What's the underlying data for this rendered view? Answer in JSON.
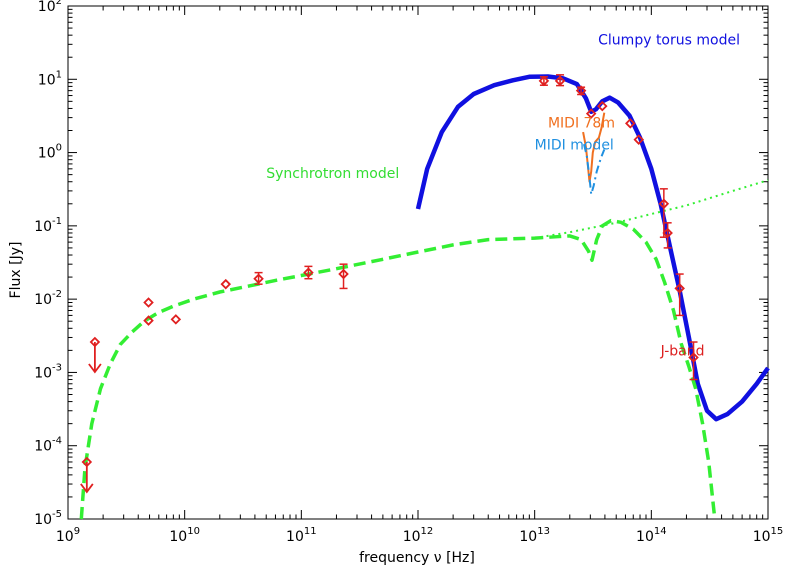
{
  "chart_data": {
    "type": "scatter",
    "title": "",
    "xlabel": "frequency ν [Hz]",
    "ylabel": "Flux [Jy]",
    "xscale": "log",
    "yscale": "log",
    "xlim": [
      1000000000.0,
      1000000000000000.0
    ],
    "ylim": [
      1e-05,
      100
    ],
    "grid": false,
    "x_ticks": [
      {
        "base": "10",
        "exp": "9",
        "value": 1000000000.0
      },
      {
        "base": "10",
        "exp": "10",
        "value": 10000000000.0
      },
      {
        "base": "10",
        "exp": "11",
        "value": 100000000000.0
      },
      {
        "base": "10",
        "exp": "12",
        "value": 1000000000000.0
      },
      {
        "base": "10",
        "exp": "13",
        "value": 10000000000000.0
      },
      {
        "base": "10",
        "exp": "14",
        "value": 100000000000000.0
      },
      {
        "base": "10",
        "exp": "15",
        "value": 1000000000000000.0
      }
    ],
    "y_ticks": [
      {
        "base": "10",
        "exp": "-5",
        "value": 1e-05
      },
      {
        "base": "10",
        "exp": "-4",
        "value": 0.0001
      },
      {
        "base": "10",
        "exp": "-3",
        "value": 0.001
      },
      {
        "base": "10",
        "exp": "-2",
        "value": 0.01
      },
      {
        "base": "10",
        "exp": "-1",
        "value": 0.1
      },
      {
        "base": "10",
        "exp": "0",
        "value": 1
      },
      {
        "base": "10",
        "exp": "1",
        "value": 10
      },
      {
        "base": "10",
        "exp": "2",
        "value": 100
      }
    ],
    "annotations": [
      {
        "text": "Clumpy torus model",
        "color": "#1010e0",
        "x": 35000000000000.0,
        "y": 30
      },
      {
        "text": "MIDI 78m",
        "color": "#f07020",
        "x": 13000000000000.0,
        "y": 2.2
      },
      {
        "text": "MIDI model",
        "color": "#2090e0",
        "x": 10000000000000.0,
        "y": 1.1
      },
      {
        "text": "Synchrotron model",
        "color": "#33dd33",
        "x": 50000000000.0,
        "y": 0.45
      },
      {
        "text": "J-band",
        "color": "#dd2020",
        "x": 120000000000000.0,
        "y": 0.0017
      }
    ],
    "series": [
      {
        "kind": "line",
        "color": "#1010e0",
        "style": "solid",
        "width": 4.5,
        "points": [
          [
            1000000000000.0,
            0.17
          ],
          [
            1200000000000.0,
            0.6
          ],
          [
            1600000000000.0,
            1.9
          ],
          [
            2200000000000.0,
            4.2
          ],
          [
            3000000000000.0,
            6.3
          ],
          [
            4500000000000.0,
            8.3
          ],
          [
            6500000000000.0,
            9.7
          ],
          [
            9000000000000.0,
            10.8
          ],
          [
            13000000000000.0,
            10.9
          ],
          [
            17500000000000.0,
            10.3
          ],
          [
            23000000000000.0,
            8.6
          ],
          [
            27500000000000.0,
            5.5
          ],
          [
            30500000000000.0,
            3.6
          ],
          [
            33500000000000.0,
            3.9
          ],
          [
            38000000000000.0,
            5
          ],
          [
            44000000000000.0,
            5.6
          ],
          [
            52000000000000.0,
            4.8
          ],
          [
            65000000000000.0,
            3.2
          ],
          [
            80000000000000.0,
            1.6
          ],
          [
            100000000000000.0,
            0.6
          ],
          [
            120000000000000.0,
            0.2
          ],
          [
            145000000000000.0,
            0.05
          ],
          [
            175000000000000.0,
            0.013
          ],
          [
            210000000000000.0,
            0.003
          ],
          [
            250000000000000.0,
            0.0007
          ],
          [
            300000000000000.0,
            0.0003
          ],
          [
            360000000000000.0,
            0.00023
          ],
          [
            450000000000000.0,
            0.00027
          ],
          [
            600000000000000.0,
            0.0004
          ],
          [
            800000000000000.0,
            0.0007
          ],
          [
            1000000000000000.0,
            0.00115
          ]
        ]
      },
      {
        "kind": "line",
        "color": "#33ee33",
        "style": "dashed",
        "width": 3.5,
        "points": [
          [
            1300000000.0,
            1e-05
          ],
          [
            1400000000.0,
            5e-05
          ],
          [
            1600000000.0,
            0.0002
          ],
          [
            1900000000.0,
            0.0006
          ],
          [
            2300000000.0,
            0.0013
          ],
          [
            2800000000.0,
            0.0024
          ],
          [
            3500000000.0,
            0.0035
          ],
          [
            4500000000.0,
            0.005
          ],
          [
            6000000000.0,
            0.0066
          ],
          [
            8000000000.0,
            0.008
          ],
          [
            12000000000.0,
            0.01
          ],
          [
            20000000000.0,
            0.0125
          ],
          [
            35000000000.0,
            0.015
          ],
          [
            60000000000.0,
            0.018
          ],
          [
            100000000000.0,
            0.021
          ],
          [
            200000000000.0,
            0.026
          ],
          [
            500000000000.0,
            0.035
          ],
          [
            1000000000000.0,
            0.044
          ],
          [
            2000000000000.0,
            0.055
          ],
          [
            4000000000000.0,
            0.065
          ],
          [
            10000000000000.0,
            0.068
          ],
          [
            20000000000000.0,
            0.073
          ],
          [
            25000000000000.0,
            0.065
          ],
          [
            29000000000000.0,
            0.045
          ],
          [
            31000000000000.0,
            0.034
          ],
          [
            34000000000000.0,
            0.065
          ],
          [
            38000000000000.0,
            0.1
          ],
          [
            45000000000000.0,
            0.118
          ],
          [
            55000000000000.0,
            0.112
          ],
          [
            70000000000000.0,
            0.09
          ],
          [
            90000000000000.0,
            0.06
          ],
          [
            110000000000000.0,
            0.035
          ],
          [
            130000000000000.0,
            0.017
          ],
          [
            155000000000000.0,
            0.007
          ],
          [
            180000000000000.0,
            0.0025
          ],
          [
            210000000000000.0,
            0.0012
          ],
          [
            240000000000000.0,
            0.0006
          ],
          [
            275000000000000.0,
            0.0002
          ],
          [
            310000000000000.0,
            6e-05
          ],
          [
            350000000000000.0,
            1e-05
          ]
        ]
      },
      {
        "kind": "line",
        "color": "#33ee33",
        "style": "dotted",
        "width": 2,
        "points": [
          [
            10000000000000.0,
            0.068
          ],
          [
            20000000000000.0,
            0.082
          ],
          [
            50000000000000.0,
            0.11
          ],
          [
            100000000000000.0,
            0.145
          ],
          [
            200000000000000.0,
            0.19
          ],
          [
            500000000000000.0,
            0.3
          ],
          [
            1000000000000000.0,
            0.42
          ]
        ]
      },
      {
        "kind": "line",
        "color": "#f07020",
        "style": "solid",
        "width": 2,
        "points": [
          [
            26000000000000.0,
            1.9
          ],
          [
            27500000000000.0,
            1.2
          ],
          [
            28500000000000.0,
            0.7
          ],
          [
            29500000000000.0,
            0.4
          ],
          [
            30500000000000.0,
            0.55
          ],
          [
            31500000000000.0,
            1
          ],
          [
            33000000000000.0,
            1.4
          ],
          [
            35500000000000.0,
            1.6
          ],
          [
            37500000000000.0,
            2.2
          ],
          [
            39500000000000.0,
            3.5
          ]
        ]
      },
      {
        "kind": "line",
        "color": "#2090e0",
        "style": "dashdot",
        "width": 2,
        "points": [
          [
            26500000000000.0,
            1.3
          ],
          [
            28000000000000.0,
            0.9
          ],
          [
            29500000000000.0,
            0.45
          ],
          [
            30500000000000.0,
            0.27
          ],
          [
            32000000000000.0,
            0.35
          ],
          [
            34000000000000.0,
            0.55
          ],
          [
            37000000000000.0,
            0.85
          ],
          [
            39500000000000.0,
            1.1
          ]
        ]
      },
      {
        "kind": "points",
        "color": "#e02020",
        "marker": "diamond",
        "points": [
          {
            "x": 1450000000.0,
            "y": 6e-05
          },
          {
            "x": 1700000000.0,
            "y": 0.0026
          },
          {
            "x": 4900000000.0,
            "y": 0.009
          },
          {
            "x": 4900000000.0,
            "y": 0.0051
          },
          {
            "x": 8400000000.0,
            "y": 0.0053
          },
          {
            "x": 22500000000.0,
            "y": 0.016
          },
          {
            "x": 43000000000.0,
            "y": 0.019,
            "yerr": [
              0.016,
              0.023
            ]
          },
          {
            "x": 115000000000.0,
            "y": 0.023,
            "yerr": [
              0.019,
              0.028
            ]
          },
          {
            "x": 230000000000.0,
            "y": 0.022,
            "yerr": [
              0.014,
              0.03
            ]
          },
          {
            "x": 12000000000000.0,
            "y": 9.5,
            "yerr": [
              8.3,
              10.8
            ]
          },
          {
            "x": 16500000000000.0,
            "y": 9.5,
            "yerr": [
              8.2,
              11.5
            ]
          },
          {
            "x": 25000000000000.0,
            "y": 7,
            "yerr": [
              6.2,
              7.8
            ]
          },
          {
            "x": 30500000000000.0,
            "y": 3.4
          },
          {
            "x": 38000000000000.0,
            "y": 4.3
          },
          {
            "x": 66000000000000.0,
            "y": 2.5
          },
          {
            "x": 78000000000000.0,
            "y": 1.5
          },
          {
            "x": 128000000000000.0,
            "y": 0.2,
            "yerr": [
              0.07,
              0.32
            ]
          },
          {
            "x": 138000000000000.0,
            "y": 0.08,
            "yerr": [
              0.05,
              0.11
            ]
          },
          {
            "x": 175000000000000.0,
            "y": 0.014,
            "yerr": [
              0.006,
              0.022
            ]
          },
          {
            "x": 230000000000000.0,
            "y": 0.0016,
            "yerr": [
              0.0008,
              0.0026
            ]
          }
        ]
      },
      {
        "kind": "upper_limits",
        "color": "#e02020",
        "points": [
          {
            "x": 1700000000.0,
            "y": 0.0026
          },
          {
            "x": 1450000000.0,
            "y": 6e-05
          }
        ]
      }
    ]
  }
}
